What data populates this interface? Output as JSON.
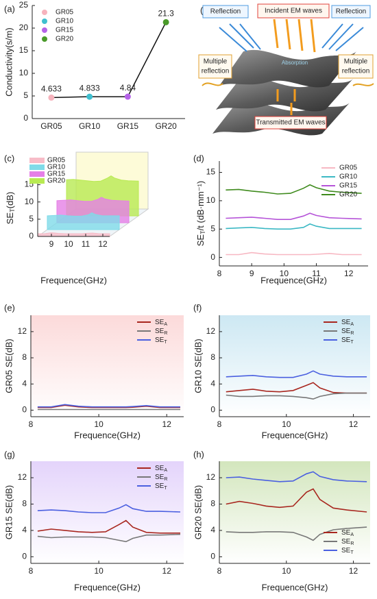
{
  "chart_data": [
    {
      "type": "category_line",
      "panel": "(a)",
      "ylabel": "Conductivity(s/m)",
      "categories": [
        "GR05",
        "GR10",
        "GR15",
        "GR20"
      ],
      "values": [
        4.633,
        4.833,
        4.84,
        21.3
      ],
      "colors": [
        "#f6b3bd",
        "#3fbfcf",
        "#b563e8",
        "#4a9a2a"
      ],
      "line_color": "#111",
      "ylim": [
        0,
        25
      ],
      "yticks": [
        0,
        5,
        10,
        15,
        20,
        25
      ],
      "legend": "upper left"
    },
    {
      "type": "area3d",
      "panel": "(c)",
      "xlabel": "Frequence(GHz)",
      "ylabel": "SET(dB)",
      "x": [
        8.2,
        8.6,
        9.0,
        9.4,
        9.8,
        10.2,
        10.6,
        10.8,
        11.0,
        11.4,
        11.8,
        12.4
      ],
      "series": [
        {
          "name": "GR05",
          "color": "#f7bcc8",
          "values": [
            0.8,
            0.8,
            1.1,
            0.9,
            0.8,
            0.8,
            0.8,
            0.8,
            0.9,
            1.0,
            0.8,
            0.8
          ]
        },
        {
          "name": "GR10",
          "color": "#7fdbe8",
          "values": [
            4.0,
            4.1,
            4.2,
            4.0,
            3.9,
            3.9,
            4.3,
            4.9,
            4.4,
            4.0,
            4.0,
            4.0
          ]
        },
        {
          "name": "GR15",
          "color": "#e57fe6",
          "values": [
            6.4,
            6.5,
            6.6,
            6.4,
            6.2,
            6.2,
            6.8,
            7.4,
            6.9,
            6.5,
            6.4,
            6.3
          ]
        },
        {
          "name": "GR20",
          "color": "#b8ea52",
          "values": [
            10.5,
            10.6,
            10.4,
            10.2,
            10.0,
            10.1,
            11.0,
            11.6,
            11.0,
            10.4,
            10.2,
            10.1
          ]
        }
      ],
      "xlim": [
        8.2,
        12.4
      ],
      "ylim": [
        0,
        16.5
      ],
      "xticks": [
        9,
        10,
        11,
        12
      ],
      "yticks": [
        0,
        5,
        10,
        15
      ],
      "legend": "upper left"
    },
    {
      "type": "line",
      "panel": "(d)",
      "xlabel": "Frequence(GHz)",
      "ylabel": "SET/t (dB·mm⁻¹)",
      "x": [
        8.2,
        8.6,
        9.0,
        9.4,
        9.8,
        10.2,
        10.6,
        10.8,
        11.0,
        11.4,
        11.8,
        12.4
      ],
      "series": [
        {
          "name": "GR05",
          "color": "#f7b7c2",
          "values": [
            0.5,
            0.5,
            0.85,
            0.6,
            0.5,
            0.5,
            0.5,
            0.5,
            0.55,
            0.7,
            0.5,
            0.5
          ]
        },
        {
          "name": "GR10",
          "color": "#3bb8c4",
          "values": [
            5.1,
            5.2,
            5.3,
            5.1,
            5.0,
            5.0,
            5.3,
            5.9,
            5.5,
            5.1,
            5.1,
            5.1
          ]
        },
        {
          "name": "GR15",
          "color": "#b553d8",
          "values": [
            6.9,
            7.0,
            7.1,
            6.9,
            6.7,
            6.7,
            7.3,
            7.8,
            7.4,
            7.0,
            6.9,
            6.8
          ]
        },
        {
          "name": "GR20",
          "color": "#3e8a1c",
          "values": [
            11.9,
            12.0,
            11.7,
            11.5,
            11.2,
            11.3,
            12.2,
            12.8,
            12.3,
            11.7,
            11.5,
            11.3
          ]
        }
      ],
      "xlim": [
        8,
        12.6
      ],
      "ylim": [
        -1.5,
        17
      ],
      "xticks": [
        8,
        9,
        10,
        11,
        12
      ],
      "yticks": [
        0,
        5,
        10,
        15
      ],
      "legend": "upper right"
    },
    {
      "type": "line",
      "panel": "(e)",
      "xlabel": "Frequence(GHz)",
      "ylabel": "GR05 SE(dB)",
      "background": "#fcdada",
      "x": [
        8.2,
        8.6,
        9.0,
        9.4,
        9.8,
        10.2,
        10.6,
        10.8,
        11.0,
        11.4,
        11.8,
        12.4
      ],
      "series": [
        {
          "name": "SEA",
          "color": "#a8261e",
          "values": [
            0.4,
            0.4,
            0.75,
            0.5,
            0.4,
            0.4,
            0.4,
            0.4,
            0.45,
            0.6,
            0.4,
            0.4
          ]
        },
        {
          "name": "SER",
          "color": "#777777",
          "values": [
            0.1,
            0.1,
            0.1,
            0.1,
            0.1,
            0.1,
            0.1,
            0.1,
            0.1,
            0.1,
            0.1,
            0.1
          ]
        },
        {
          "name": "SET",
          "color": "#4a5fe0",
          "values": [
            0.5,
            0.5,
            0.85,
            0.6,
            0.5,
            0.5,
            0.5,
            0.5,
            0.55,
            0.7,
            0.5,
            0.5
          ]
        }
      ],
      "xlim": [
        8,
        12.5
      ],
      "ylim": [
        -1,
        14.5
      ],
      "xticks": [
        8,
        10,
        12
      ],
      "yticks": [
        0,
        4,
        8,
        12
      ],
      "legend": "upper right"
    },
    {
      "type": "line",
      "panel": "(f)",
      "xlabel": "Frequence(GHz)",
      "ylabel": "GR10 SE(dB)",
      "background": "#cde8f3",
      "x": [
        8.2,
        8.6,
        9.0,
        9.4,
        9.8,
        10.2,
        10.6,
        10.8,
        11.0,
        11.4,
        11.8,
        12.4
      ],
      "series": [
        {
          "name": "SEA",
          "color": "#a8261e",
          "values": [
            2.8,
            3.0,
            3.2,
            2.9,
            2.8,
            3.0,
            3.8,
            4.2,
            3.4,
            2.7,
            2.6,
            2.6
          ]
        },
        {
          "name": "SER",
          "color": "#777777",
          "values": [
            2.3,
            2.1,
            2.1,
            2.2,
            2.2,
            2.1,
            1.9,
            1.7,
            2.1,
            2.5,
            2.6,
            2.6
          ]
        },
        {
          "name": "SET",
          "color": "#4a5fe0",
          "values": [
            5.1,
            5.2,
            5.3,
            5.1,
            5.0,
            5.0,
            5.5,
            6.0,
            5.5,
            5.2,
            5.1,
            5.1
          ]
        }
      ],
      "xlim": [
        8,
        12.5
      ],
      "ylim": [
        -1,
        14.5
      ],
      "xticks": [
        8,
        10,
        12
      ],
      "yticks": [
        0,
        4,
        8,
        12
      ],
      "legend": "upper right"
    },
    {
      "type": "line",
      "panel": "(g)",
      "xlabel": "Frequence(GHz)",
      "ylabel": "GR15 SE(dB)",
      "background": "#e4d4fb",
      "x": [
        8.2,
        8.6,
        9.0,
        9.4,
        9.8,
        10.2,
        10.6,
        10.8,
        11.0,
        11.4,
        11.8,
        12.4
      ],
      "series": [
        {
          "name": "SEA",
          "color": "#a8261e",
          "values": [
            3.9,
            4.2,
            4.0,
            3.8,
            3.7,
            3.8,
            4.9,
            5.5,
            4.5,
            3.7,
            3.6,
            3.6
          ]
        },
        {
          "name": "SER",
          "color": "#777777",
          "values": [
            3.1,
            2.9,
            3.0,
            3.0,
            3.0,
            2.9,
            2.5,
            2.3,
            2.8,
            3.3,
            3.3,
            3.4
          ]
        },
        {
          "name": "SET",
          "color": "#4a5fe0",
          "values": [
            7.0,
            7.1,
            7.0,
            6.8,
            6.7,
            6.7,
            7.4,
            7.9,
            7.3,
            6.9,
            6.9,
            6.8
          ]
        }
      ],
      "xlim": [
        8,
        12.5
      ],
      "ylim": [
        -1,
        14.5
      ],
      "xticks": [
        8,
        10,
        12
      ],
      "yticks": [
        0,
        4,
        8,
        12
      ],
      "legend": "upper right"
    },
    {
      "type": "line",
      "panel": "(h)",
      "xlabel": "Frequence(GHz)",
      "ylabel": "GR20 SE(dB)",
      "background": "#d3e6bd",
      "x": [
        8.2,
        8.6,
        9.0,
        9.4,
        9.8,
        10.2,
        10.6,
        10.8,
        11.0,
        11.4,
        11.8,
        12.4
      ],
      "series": [
        {
          "name": "SEA",
          "color": "#a8261e",
          "values": [
            8.0,
            8.4,
            8.1,
            7.7,
            7.5,
            7.7,
            9.8,
            10.3,
            8.7,
            7.4,
            7.1,
            6.8
          ]
        },
        {
          "name": "SER",
          "color": "#777777",
          "values": [
            3.8,
            3.7,
            3.7,
            3.8,
            3.8,
            3.7,
            3.0,
            2.5,
            3.4,
            4.1,
            4.3,
            4.5
          ]
        },
        {
          "name": "SET",
          "color": "#4a5fe0",
          "values": [
            12.0,
            12.1,
            11.8,
            11.6,
            11.4,
            11.5,
            12.6,
            12.9,
            12.2,
            11.7,
            11.5,
            11.4
          ]
        }
      ],
      "xlim": [
        8,
        12.5
      ],
      "ylim": [
        -1,
        14.5
      ],
      "xticks": [
        8,
        10,
        12
      ],
      "yticks": [
        0,
        4,
        8,
        12
      ],
      "legend": "lower right"
    }
  ],
  "diagram": {
    "panel": "(b)",
    "reflection_left": "Reflection",
    "incident": "Incident EM waves",
    "reflection_right": "Reflection",
    "multiple_left": [
      "Multiple",
      "reflection"
    ],
    "multiple_right": [
      "Multiple",
      "reflection"
    ],
    "absorption": "Absorption",
    "transmitted": "Transmitted EM waves"
  }
}
